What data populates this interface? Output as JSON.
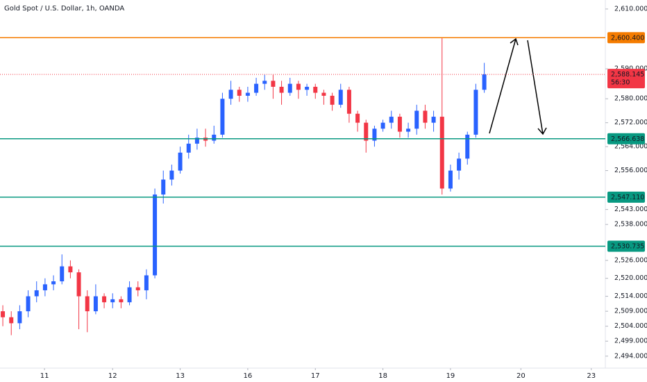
{
  "chart_data": {
    "type": "candlestick",
    "title": "Gold Spot / U.S. Dollar, 1h, OANDA",
    "up_color": "#2962ff",
    "down_color": "#f23645",
    "x": [
      1,
      4,
      7,
      10,
      13,
      16,
      19,
      22,
      25,
      28,
      31,
      34,
      37,
      40,
      43,
      46,
      49,
      52,
      55,
      58,
      61,
      64,
      67,
      70,
      73,
      76,
      79,
      82,
      85,
      88,
      91,
      94,
      97,
      100,
      103,
      106,
      109,
      112,
      115,
      118,
      121,
      124,
      127,
      130,
      133,
      136,
      139,
      142,
      145,
      148,
      151,
      154,
      157,
      160,
      163,
      166,
      169,
      172
    ],
    "open": [
      2509,
      2507,
      2505,
      2509,
      2514,
      2516,
      2518,
      2519,
      2524,
      2522,
      2514,
      2509,
      2514,
      2512,
      2513,
      2512,
      2517,
      2516,
      2521,
      2548,
      2553,
      2556,
      2562,
      2565,
      2567,
      2566,
      2568,
      2580,
      2583,
      2581,
      2582,
      2585,
      2586,
      2584,
      2582,
      2585,
      2583,
      2584,
      2582,
      2581,
      2578,
      2583,
      2575,
      2572,
      2566,
      2570,
      2572,
      2574,
      2569,
      2570,
      2576,
      2572,
      2574,
      2550,
      2556,
      2560,
      2568,
      2583
    ],
    "high": [
      2511,
      2509,
      2511,
      2516,
      2519,
      2520,
      2521,
      2528,
      2526,
      2523,
      2516,
      2518,
      2515,
      2515,
      2514,
      2519,
      2519,
      2523,
      2550,
      2556,
      2558,
      2564,
      2568,
      2570,
      2570,
      2571,
      2582,
      2586,
      2584,
      2584,
      2587,
      2588,
      2588,
      2586,
      2587,
      2586,
      2585,
      2585,
      2583,
      2582,
      2585,
      2584,
      2576,
      2573,
      2571,
      2573,
      2576,
      2575,
      2572,
      2578,
      2578,
      2576,
      2600.4,
      2558,
      2562,
      2569,
      2585,
      2592
    ],
    "low": [
      2504,
      2501,
      2503,
      2507,
      2512,
      2514,
      2516,
      2518,
      2520,
      2503,
      2502,
      2508,
      2510,
      2510,
      2510,
      2511,
      2514,
      2513,
      2520,
      2545,
      2551,
      2555,
      2560,
      2563,
      2564,
      2565,
      2567,
      2578,
      2579,
      2579,
      2581,
      2583,
      2580,
      2578,
      2581,
      2580,
      2581,
      2580,
      2578,
      2576,
      2577,
      2572,
      2569,
      2562,
      2564,
      2569,
      2570,
      2567,
      2567,
      2568,
      2570,
      2569,
      2548,
      2549,
      2553,
      2558,
      2567,
      2582
    ],
    "close": [
      2507,
      2505,
      2509,
      2514,
      2516,
      2518,
      2519,
      2524,
      2522,
      2514,
      2509,
      2514,
      2512,
      2513,
      2512,
      2517,
      2516,
      2521,
      2548,
      2553,
      2556,
      2562,
      2565,
      2567,
      2566,
      2568,
      2580,
      2583,
      2581,
      2582,
      2585,
      2586,
      2584,
      2582,
      2585,
      2583,
      2584,
      2582,
      2581,
      2578,
      2583,
      2575,
      2572,
      2566,
      2570,
      2572,
      2574,
      2569,
      2570,
      2576,
      2572,
      2574,
      2550,
      2556,
      2560,
      2568,
      2583,
      2588.145
    ],
    "xlim": [
      0,
      215
    ],
    "xticks": [
      {
        "value": 15.8,
        "label": "11"
      },
      {
        "value": 40,
        "label": "12"
      },
      {
        "value": 64,
        "label": "13"
      },
      {
        "value": 88,
        "label": "16"
      },
      {
        "value": 112,
        "label": "17"
      },
      {
        "value": 136,
        "label": "18"
      },
      {
        "value": 160,
        "label": "19"
      },
      {
        "value": 185,
        "label": "20"
      },
      {
        "value": 210,
        "label": "23"
      }
    ],
    "ylim": [
      2490,
      2613
    ],
    "yticks": [
      {
        "value": 2610,
        "label": "2,610.000"
      },
      {
        "value": 2590,
        "label": "2,590.000"
      },
      {
        "value": 2580,
        "label": "2,580.000"
      },
      {
        "value": 2572,
        "label": "2,572.000"
      },
      {
        "value": 2564,
        "label": "2,564.000"
      },
      {
        "value": 2556,
        "label": "2,556.000"
      },
      {
        "value": 2543,
        "label": "2,543.000"
      },
      {
        "value": 2538,
        "label": "2,538.000"
      },
      {
        "value": 2526,
        "label": "2,526.000"
      },
      {
        "value": 2520,
        "label": "2,520.000"
      },
      {
        "value": 2514,
        "label": "2,514.000"
      },
      {
        "value": 2509,
        "label": "2,509.000"
      },
      {
        "value": 2504,
        "label": "2,504.000"
      },
      {
        "value": 2499,
        "label": "2,499.000"
      },
      {
        "value": 2494,
        "label": "2,494.000"
      }
    ],
    "levels": [
      {
        "value": 2600.4,
        "label": "2,600.400",
        "color": "#f57c00"
      },
      {
        "value": 2566.638,
        "label": "2,566.638",
        "color": "#089981"
      },
      {
        "value": 2547.11,
        "label": "2,547.110",
        "color": "#089981"
      },
      {
        "value": 2530.735,
        "label": "2,530.735",
        "color": "#089981"
      }
    ],
    "current_price": {
      "value": 2588.145,
      "label": "2,588.145",
      "countdown": "56:30",
      "color": "#f23645"
    }
  }
}
